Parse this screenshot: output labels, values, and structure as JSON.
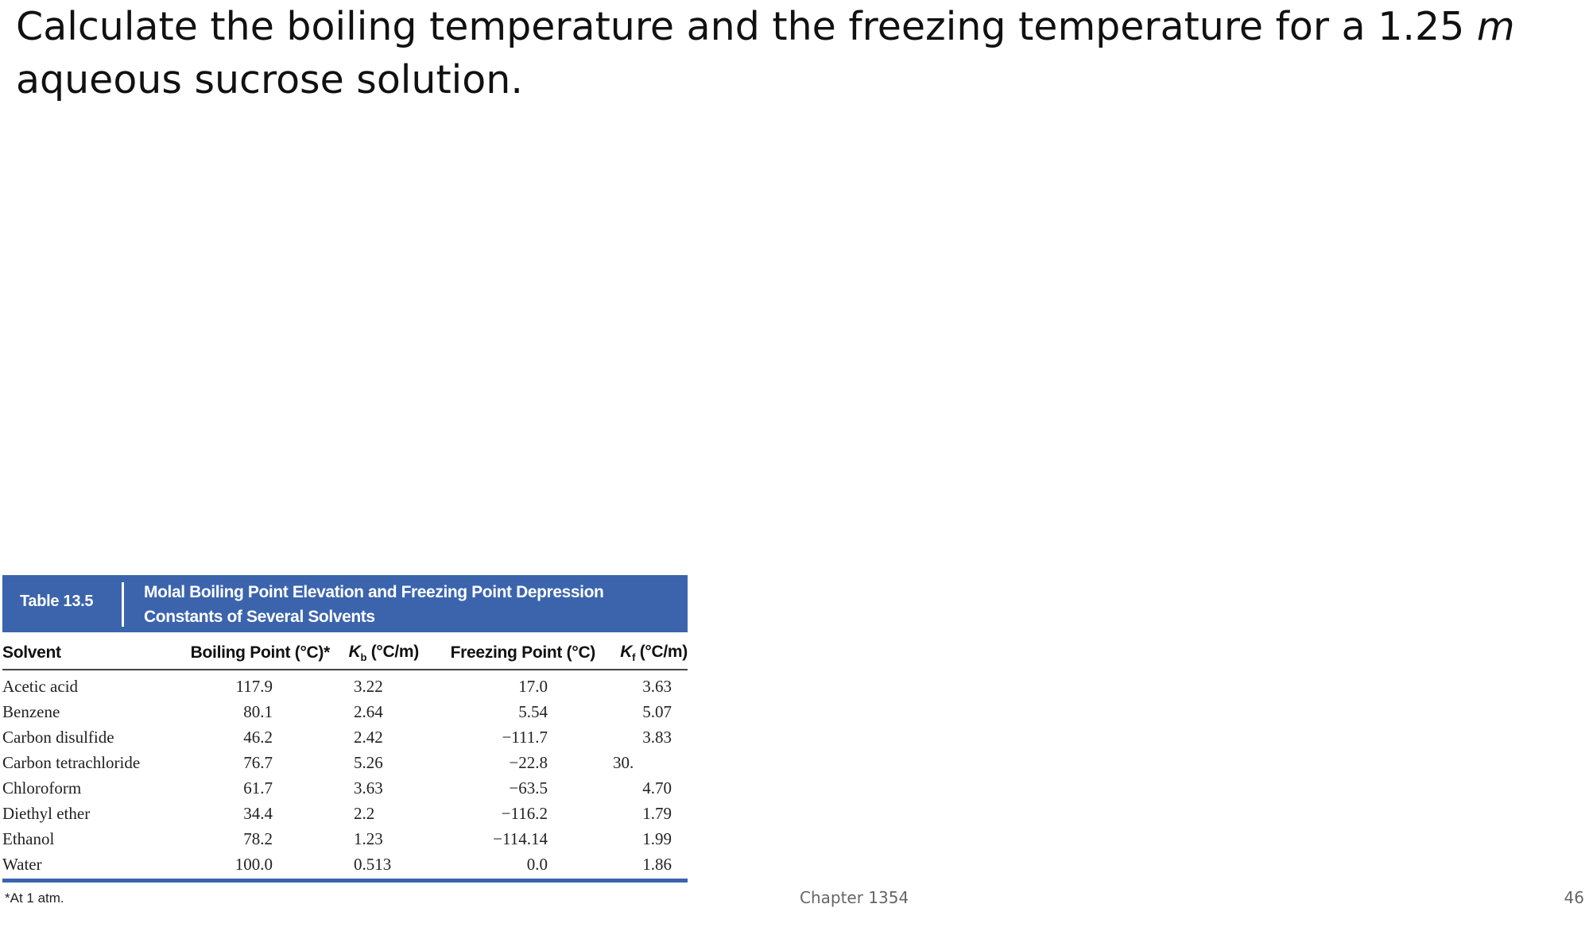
{
  "question": {
    "before": "Calculate the boiling temperature and the freezing temperature for a 1.25 ",
    "unit": "m",
    "after": " aqueous sucrose solution."
  },
  "table": {
    "number": "Table 13.5",
    "title": "Molal Boiling Point Elevation and Freezing Point Depression Constants of Several Solvents",
    "headers": {
      "solvent": "Solvent",
      "boiling_point": "Boiling Point (°C)*",
      "kb_symbol": "K",
      "kb_sub": "b",
      "kb_unit": " (°C/m)",
      "freezing_point": "Freezing Point (°C)",
      "kf_symbol": "K",
      "kf_sub": "f",
      "kf_unit": " (°C/m)"
    },
    "rows": [
      {
        "solvent": "Acetic acid",
        "bp": "117.9",
        "kb": "3.22",
        "fp": "17.0",
        "kf": "3.63"
      },
      {
        "solvent": "Benzene",
        "bp": "80.1",
        "kb": "2.64",
        "fp": "5.54",
        "kf": "5.07"
      },
      {
        "solvent": "Carbon disulfide",
        "bp": "46.2",
        "kb": "2.42",
        "fp": "−111.7",
        "kf": "3.83"
      },
      {
        "solvent": "Carbon tetrachloride",
        "bp": "76.7",
        "kb": "5.26",
        "fp": "−22.8",
        "kf": "30."
      },
      {
        "solvent": "Chloroform",
        "bp": "61.7",
        "kb": "3.63",
        "fp": "−63.5",
        "kf": "4.70"
      },
      {
        "solvent": "Diethyl ether",
        "bp": "34.4",
        "kb": "2.2",
        "fp": "−116.2",
        "kf": "1.79"
      },
      {
        "solvent": "Ethanol",
        "bp": "78.2",
        "kb": "1.23",
        "fp": "−114.14",
        "kf": "1.99"
      },
      {
        "solvent": "Water",
        "bp": "100.0",
        "kb": "0.513",
        "fp": "0.0",
        "kf": "1.86"
      }
    ],
    "footnote": "*At 1 atm."
  },
  "footer": {
    "chapter": "Chapter 1354",
    "page": "46"
  },
  "colors": {
    "banner": "#3b64ad"
  }
}
